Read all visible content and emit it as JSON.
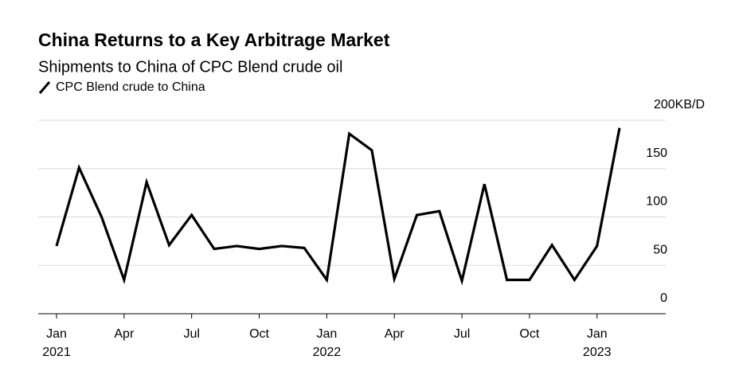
{
  "chart_data": {
    "type": "line",
    "title": "China Returns to a Key Arbitrage Market",
    "subtitle": "Shipments to China of CPC Blend crude oil",
    "x": [
      "2021-01",
      "2021-02",
      "2021-03",
      "2021-04",
      "2021-05",
      "2021-06",
      "2021-07",
      "2021-08",
      "2021-09",
      "2021-10",
      "2021-11",
      "2021-12",
      "2022-01",
      "2022-02",
      "2022-03",
      "2022-04",
      "2022-05",
      "2022-06",
      "2022-07",
      "2022-08",
      "2022-09",
      "2022-10",
      "2022-11",
      "2022-12",
      "2023-01",
      "2023-02"
    ],
    "series": [
      {
        "name": "CPC Blend crude to China",
        "color": "#000000",
        "values": [
          70,
          151,
          100,
          35,
          136,
          71,
          102,
          67,
          70,
          67,
          70,
          68,
          35,
          186,
          169,
          36,
          102,
          106,
          34,
          134,
          35,
          35,
          71,
          35,
          70,
          192
        ]
      }
    ],
    "xticks": [
      {
        "value": "2021-01",
        "label": "Jan"
      },
      {
        "value": "2021-04",
        "label": "Apr"
      },
      {
        "value": "2021-07",
        "label": "Jul"
      },
      {
        "value": "2021-10",
        "label": "Oct"
      },
      {
        "value": "2022-01",
        "label": "Jan"
      },
      {
        "value": "2022-04",
        "label": "Apr"
      },
      {
        "value": "2022-07",
        "label": "Jul"
      },
      {
        "value": "2022-10",
        "label": "Oct"
      },
      {
        "value": "2023-01",
        "label": "Jan"
      }
    ],
    "xtick_years": [
      {
        "value": "2021-01",
        "label": "2021"
      },
      {
        "value": "2022-01",
        "label": "2022"
      },
      {
        "value": "2023-01",
        "label": "2023"
      }
    ],
    "ylim": [
      0,
      200
    ],
    "yticks": [
      0,
      50,
      100,
      150,
      {
        "value": 200,
        "label": "200KB/D"
      }
    ],
    "grid": true
  }
}
